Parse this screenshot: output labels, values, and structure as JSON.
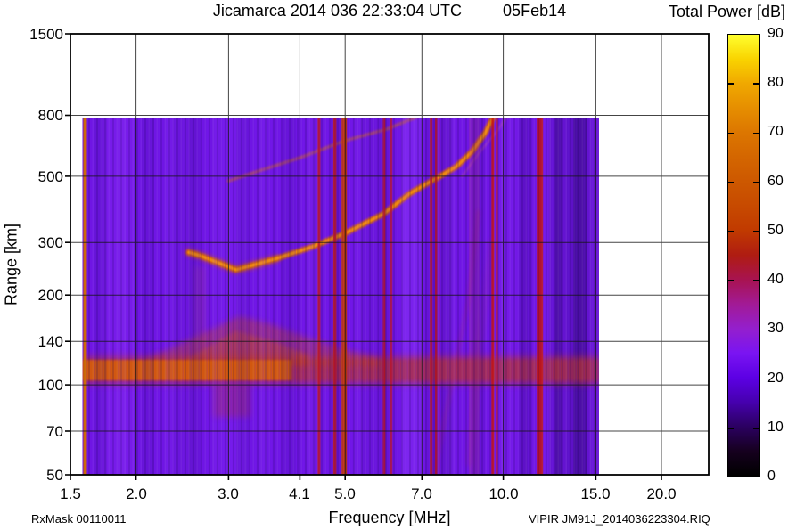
{
  "header": {
    "title": "Jicamarca 2014 036 22:33:04 UTC",
    "date": "05Feb14"
  },
  "colorbar": {
    "title": "Total Power [dB]",
    "min": 0,
    "max": 90,
    "tick_labels": [
      "0",
      "10",
      "20",
      "30",
      "40",
      "50",
      "60",
      "70",
      "80",
      "90"
    ],
    "tick_values": [
      0,
      10,
      20,
      30,
      40,
      50,
      60,
      70,
      80,
      90
    ],
    "mark_values": [
      10,
      20,
      30,
      40,
      50,
      60,
      70,
      80
    ],
    "palette": [
      [
        0,
        "#000000"
      ],
      [
        5,
        "#16001f"
      ],
      [
        10,
        "#2b0060"
      ],
      [
        15,
        "#4600ae"
      ],
      [
        20,
        "#5c00e4"
      ],
      [
        25,
        "#7a14f2"
      ],
      [
        30,
        "#941fcd"
      ],
      [
        35,
        "#a21a96"
      ],
      [
        40,
        "#a81351"
      ],
      [
        45,
        "#af1c12"
      ],
      [
        50,
        "#c13a00"
      ],
      [
        55,
        "#c74a00"
      ],
      [
        60,
        "#cd5800"
      ],
      [
        65,
        "#d46600"
      ],
      [
        70,
        "#dc7600"
      ],
      [
        75,
        "#e68e00"
      ],
      [
        80,
        "#f0a800"
      ],
      [
        85,
        "#f9d300"
      ],
      [
        90,
        "#ffff2e"
      ]
    ]
  },
  "axes": {
    "x_label": "Frequency [MHz]",
    "y_label": "Range [km]",
    "x_ticks": [
      {
        "v": 1.5,
        "label": "1.5"
      },
      {
        "v": 2.0,
        "label": "2.0"
      },
      {
        "v": 3.0,
        "label": "3.0"
      },
      {
        "v": 4.1,
        "label": "4.1"
      },
      {
        "v": 5.0,
        "label": "5.0"
      },
      {
        "v": 7.0,
        "label": "7.0"
      },
      {
        "v": 10.0,
        "label": "10.0"
      },
      {
        "v": 15.0,
        "label": "15.0"
      },
      {
        "v": 20.0,
        "label": "20.0"
      }
    ],
    "y_ticks": [
      {
        "v": 50,
        "label": "50"
      },
      {
        "v": 70,
        "label": "70"
      },
      {
        "v": 100,
        "label": "100"
      },
      {
        "v": 140,
        "label": "140"
      },
      {
        "v": 200,
        "label": "200"
      },
      {
        "v": 300,
        "label": "300"
      },
      {
        "v": 500,
        "label": "500"
      },
      {
        "v": 800,
        "label": "800"
      },
      {
        "v": 1500,
        "label": "1500"
      }
    ]
  },
  "footer": {
    "left": "RxMask 00110011",
    "right": "VIPIR  JM91J_2014036223304.RIQ"
  },
  "chart_data": {
    "type": "heatmap",
    "title": "Jicamarca 2014 036 22:33:04 UTC 05Feb14",
    "xlabel": "Frequency [MHz]",
    "ylabel": "Range [km]",
    "zlabel": "Total Power [dB]",
    "x_scale": "log",
    "y_scale": "log",
    "xlim": [
      1.5,
      24.6
    ],
    "ylim": [
      50,
      1500
    ],
    "zlim": [
      0,
      90
    ],
    "x_tick_values": [
      1.5,
      2.0,
      3.0,
      4.1,
      5.0,
      7.0,
      10.0,
      15.0,
      20.0
    ],
    "y_tick_values": [
      50,
      70,
      100,
      140,
      200,
      300,
      500,
      800,
      1500
    ],
    "z_tick_values": [
      0,
      10,
      20,
      30,
      40,
      50,
      60,
      70,
      80,
      90
    ],
    "data_extent": {
      "f_mhz": [
        1.58,
        15.2
      ],
      "range_km": [
        50,
        800
      ]
    },
    "background_power_db": 24,
    "features": {
      "base_color": "#6F15E4",
      "rfi_stripes": [
        {
          "f": 1.6,
          "w": 4,
          "color": "#C86400",
          "alpha": 1
        },
        {
          "f": 4.46,
          "w": 3,
          "color": "#BE1616",
          "alpha": 0.85
        },
        {
          "f": 4.78,
          "w": 3.5,
          "color": "#C01414",
          "alpha": 0.9
        },
        {
          "f": 4.98,
          "w": 6,
          "color": "#CC3C00",
          "alpha": 0.95
        },
        {
          "f": 5.93,
          "w": 3,
          "color": "#BE1414",
          "alpha": 0.8
        },
        {
          "f": 6.12,
          "w": 2.5,
          "color": "#BE1414",
          "alpha": 0.75
        },
        {
          "f": 7.29,
          "w": 3,
          "color": "#C01414",
          "alpha": 0.85
        },
        {
          "f": 7.45,
          "w": 2.5,
          "color": "#C01414",
          "alpha": 0.8
        },
        {
          "f": 7.55,
          "w": 1.5,
          "color": "#C01414",
          "alpha": 0.6
        },
        {
          "f": 8.8,
          "w": 12,
          "color": "#B03060",
          "alpha": 0.22
        },
        {
          "f": 9.55,
          "w": 3,
          "color": "#C01414",
          "alpha": 0.85
        },
        {
          "f": 9.72,
          "w": 2.5,
          "color": "#C01414",
          "alpha": 0.8
        },
        {
          "f": 11.74,
          "w": 7,
          "color": "#BE1212",
          "alpha": 0.85
        }
      ],
      "shade_bands": [
        {
          "f1": 1.72,
          "f2": 1.98,
          "color": "#8A2CF6",
          "alpha": 0.3
        },
        {
          "f1": 2.35,
          "f2": 2.6,
          "color": "#5A18B8",
          "alpha": 0.18
        },
        {
          "f1": 2.9,
          "f2": 3.25,
          "color": "#8A2CF6",
          "alpha": 0.22
        },
        {
          "f1": 5.35,
          "f2": 5.75,
          "color": "#5A18B8",
          "alpha": 0.2
        },
        {
          "f1": 6.4,
          "f2": 7.0,
          "color": "#9140FF",
          "alpha": 0.3
        },
        {
          "f1": 7.6,
          "f2": 8.0,
          "color": "#4A10A0",
          "alpha": 0.26
        },
        {
          "f1": 9.9,
          "f2": 10.6,
          "color": "#8A2CF6",
          "alpha": 0.2
        },
        {
          "f1": 10.7,
          "f2": 11.15,
          "color": "#45109A",
          "alpha": 0.24
        },
        {
          "f1": 12.2,
          "f2": 15.2,
          "color": "#3C0E86",
          "alpha": 0.2
        },
        {
          "f1": 12.55,
          "f2": 12.95,
          "color": "#2E0870",
          "alpha": 0.4
        },
        {
          "f1": 13.6,
          "f2": 14.45,
          "color": "#2E0870",
          "alpha": 0.45
        }
      ],
      "e_band": {
        "km": [
          103,
          122
        ],
        "strong_f": [
          1.58,
          3.95
        ],
        "core_color": "#D45A08",
        "weak_color": "#B43226",
        "fringe_color": "#C83A10"
      },
      "e_diffuse_poly": [
        [
          2.05,
          120
        ],
        [
          2.75,
          152
        ],
        [
          3.15,
          170
        ],
        [
          3.6,
          160
        ],
        [
          4.3,
          143
        ],
        [
          5.3,
          128
        ],
        [
          5.9,
          121
        ]
      ],
      "e_diffuse_inner": [
        [
          2.5,
          122
        ],
        [
          3.1,
          152
        ],
        [
          3.7,
          139
        ],
        [
          4.25,
          126
        ]
      ],
      "below_band_fuzz": {
        "f": [
          2.8,
          3.3
        ],
        "km": [
          78,
          100
        ]
      },
      "nose_column": {
        "f": [
          2.58,
          2.72
        ],
        "km": [
          122,
          250
        ]
      },
      "trace_main": [
        [
          2.52,
          278
        ],
        [
          2.65,
          271
        ],
        [
          3.1,
          243
        ],
        [
          3.7,
          265
        ],
        [
          4.32,
          290
        ],
        [
          5.0,
          322
        ],
        [
          5.91,
          374
        ],
        [
          6.64,
          438
        ],
        [
          7.47,
          493
        ],
        [
          8.14,
          539
        ],
        [
          8.73,
          606
        ],
        [
          9.26,
          704
        ],
        [
          9.57,
          790
        ]
      ],
      "trace_second_hop": [
        [
          3.0,
          482
        ],
        [
          3.3,
          510
        ],
        [
          4.1,
          577
        ],
        [
          5.0,
          658
        ],
        [
          6.0,
          719
        ],
        [
          6.9,
          795
        ]
      ],
      "trace_x_mode": [
        [
          8.35,
          500
        ],
        [
          9.0,
          600
        ],
        [
          9.8,
          720
        ],
        [
          10.2,
          800
        ]
      ],
      "oblique_traces": [
        {
          "pts": [
            [
              8.97,
              382
            ],
            [
              8.57,
              192
            ],
            [
              7.38,
              50
            ]
          ],
          "w": 3,
          "alpha": 0.3,
          "color": "#B02838"
        },
        {
          "pts": [
            [
              9.5,
              300
            ],
            [
              9.0,
              130
            ],
            [
              8.6,
              55
            ]
          ],
          "w": 9,
          "alpha": 0.14,
          "color": "#A03060"
        }
      ],
      "trace_colors": {
        "main": "#D96A06",
        "core": "#F08A10",
        "nose": "#C85010",
        "second": "#D06A10",
        "xmode": "#D06080"
      }
    }
  }
}
